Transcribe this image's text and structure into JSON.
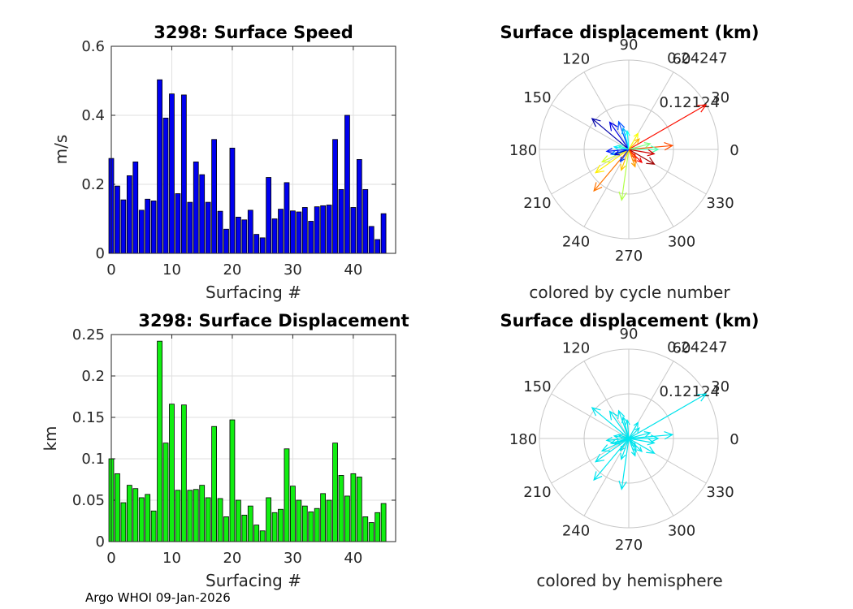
{
  "footer": "Argo WHOI 09-Jan-2026",
  "chart_data": [
    {
      "type": "bar",
      "title": "3298: Surface Speed",
      "xlabel": "Surfacing #",
      "ylabel": "m/s",
      "xlim": [
        0,
        47
      ],
      "ylim": [
        0,
        0.6
      ],
      "xticks": [
        0,
        10,
        20,
        30,
        40
      ],
      "yticks": [
        0,
        0.2,
        0.4,
        0.6
      ],
      "xtick_labels": [
        "0",
        "10",
        "20",
        "30",
        "40"
      ],
      "ytick_labels": [
        "0",
        "0.2",
        "0.4",
        "0.6"
      ],
      "color": "#0000ee",
      "x": [
        0,
        1,
        2,
        3,
        4,
        5,
        6,
        7,
        8,
        9,
        10,
        11,
        12,
        13,
        14,
        15,
        16,
        17,
        18,
        19,
        20,
        21,
        22,
        23,
        24,
        25,
        26,
        27,
        28,
        29,
        30,
        31,
        32,
        33,
        34,
        35,
        36,
        37,
        38,
        39,
        40,
        41,
        42,
        43,
        44,
        45
      ],
      "values": [
        0.275,
        0.195,
        0.155,
        0.225,
        0.265,
        0.125,
        0.157,
        0.152,
        0.503,
        0.392,
        0.462,
        0.173,
        0.459,
        0.148,
        0.265,
        0.228,
        0.148,
        0.33,
        0.122,
        0.07,
        0.305,
        0.105,
        0.097,
        0.125,
        0.055,
        0.045,
        0.22,
        0.1,
        0.128,
        0.205,
        0.123,
        0.12,
        0.133,
        0.093,
        0.135,
        0.138,
        0.14,
        0.33,
        0.185,
        0.4,
        0.133,
        0.272,
        0.185,
        0.078,
        0.04,
        0.115
      ]
    },
    {
      "type": "bar",
      "title": "3298: Surface Displacement",
      "xlabel": "Surfacing #",
      "ylabel": "km",
      "xlim": [
        0,
        47
      ],
      "ylim": [
        0,
        0.25
      ],
      "xticks": [
        0,
        10,
        20,
        30,
        40
      ],
      "yticks": [
        0,
        0.05,
        0.1,
        0.15,
        0.2,
        0.25
      ],
      "xtick_labels": [
        "0",
        "10",
        "20",
        "30",
        "40"
      ],
      "ytick_labels": [
        "0",
        "0.05",
        "0.1",
        "0.15",
        "0.2",
        "0.25"
      ],
      "color": "#11ee11",
      "x": [
        0,
        1,
        2,
        3,
        4,
        5,
        6,
        7,
        8,
        9,
        10,
        11,
        12,
        13,
        14,
        15,
        16,
        17,
        18,
        19,
        20,
        21,
        22,
        23,
        24,
        25,
        26,
        27,
        28,
        29,
        30,
        31,
        32,
        33,
        34,
        35,
        36,
        37,
        38,
        39,
        40,
        41,
        42,
        43,
        44,
        45
      ],
      "values": [
        0.1,
        0.082,
        0.047,
        0.068,
        0.064,
        0.053,
        0.057,
        0.037,
        0.242,
        0.119,
        0.166,
        0.062,
        0.165,
        0.062,
        0.063,
        0.068,
        0.053,
        0.139,
        0.052,
        0.03,
        0.147,
        0.05,
        0.032,
        0.043,
        0.02,
        0.013,
        0.053,
        0.035,
        0.039,
        0.112,
        0.067,
        0.05,
        0.043,
        0.036,
        0.04,
        0.058,
        0.05,
        0.119,
        0.08,
        0.055,
        0.082,
        0.078,
        0.03,
        0.023,
        0.035,
        0.046
      ]
    },
    {
      "type": "polar-quiver",
      "title": "Surface displacement (km)",
      "subtitle": "colored by cycle number",
      "rmax": 0.24247,
      "rtick_labels": [
        "0.12124",
        "0.24247"
      ],
      "angle_labels": [
        "0",
        "30",
        "60",
        "90",
        "120",
        "150",
        "180",
        "210",
        "240",
        "270",
        "300",
        "330"
      ],
      "colormap": "jet",
      "vectors": [
        {
          "angle": 30,
          "r": 0.242,
          "c": 0.86
        },
        {
          "angle": 140,
          "r": 0.13,
          "c": 0.04
        },
        {
          "angle": 125,
          "r": 0.09,
          "c": 0.1
        },
        {
          "angle": 110,
          "r": 0.08,
          "c": 0.2
        },
        {
          "angle": 105,
          "r": 0.06,
          "c": 0.3
        },
        {
          "angle": 95,
          "r": 0.05,
          "c": 0.38
        },
        {
          "angle": 60,
          "r": 0.05,
          "c": 0.62
        },
        {
          "angle": 45,
          "r": 0.04,
          "c": 0.7
        },
        {
          "angle": 5,
          "r": 0.119,
          "c": 0.8
        },
        {
          "angle": 0,
          "r": 0.08,
          "c": 0.45
        },
        {
          "angle": 15,
          "r": 0.06,
          "c": 0.5
        },
        {
          "angle": -10,
          "r": 0.07,
          "c": 0.92
        },
        {
          "angle": -30,
          "r": 0.08,
          "c": 0.97
        },
        {
          "angle": -45,
          "r": 0.05,
          "c": 0.88
        },
        {
          "angle": -60,
          "r": 0.04,
          "c": 0.78
        },
        {
          "angle": 230,
          "r": 0.147,
          "c": 0.76
        },
        {
          "angle": 215,
          "r": 0.11,
          "c": 0.64
        },
        {
          "angle": 205,
          "r": 0.08,
          "c": 0.58
        },
        {
          "angle": 262,
          "r": 0.139,
          "c": 0.55
        },
        {
          "angle": 250,
          "r": 0.06,
          "c": 0.68
        },
        {
          "angle": 195,
          "r": 0.05,
          "c": 0.25
        },
        {
          "angle": 185,
          "r": 0.06,
          "c": 0.15
        },
        {
          "angle": 200,
          "r": 0.04,
          "c": 0.08
        },
        {
          "angle": 170,
          "r": 0.04,
          "c": 0.35
        },
        {
          "angle": 160,
          "r": 0.03,
          "c": 0.42
        },
        {
          "angle": 290,
          "r": 0.05,
          "c": 0.72
        },
        {
          "angle": 310,
          "r": 0.03,
          "c": 0.82
        },
        {
          "angle": 235,
          "r": 0.04,
          "c": 0.18
        }
      ]
    },
    {
      "type": "polar-quiver",
      "title": "Surface displacement (km)",
      "subtitle": "colored by hemisphere",
      "rmax": 0.24247,
      "rtick_labels": [
        "0.12124",
        "0.24247"
      ],
      "angle_labels": [
        "0",
        "30",
        "60",
        "90",
        "120",
        "150",
        "180",
        "210",
        "240",
        "270",
        "300",
        "330"
      ],
      "color": "#00e5ee",
      "vectors": [
        {
          "angle": 30,
          "r": 0.242
        },
        {
          "angle": 140,
          "r": 0.13
        },
        {
          "angle": 125,
          "r": 0.09
        },
        {
          "angle": 110,
          "r": 0.08
        },
        {
          "angle": 105,
          "r": 0.06
        },
        {
          "angle": 95,
          "r": 0.05
        },
        {
          "angle": 60,
          "r": 0.05
        },
        {
          "angle": 45,
          "r": 0.04
        },
        {
          "angle": 5,
          "r": 0.119
        },
        {
          "angle": 0,
          "r": 0.08
        },
        {
          "angle": 15,
          "r": 0.06
        },
        {
          "angle": -10,
          "r": 0.07
        },
        {
          "angle": -30,
          "r": 0.08
        },
        {
          "angle": -45,
          "r": 0.05
        },
        {
          "angle": -60,
          "r": 0.04
        },
        {
          "angle": 230,
          "r": 0.147
        },
        {
          "angle": 215,
          "r": 0.11
        },
        {
          "angle": 205,
          "r": 0.08
        },
        {
          "angle": 262,
          "r": 0.139
        },
        {
          "angle": 250,
          "r": 0.06
        },
        {
          "angle": 195,
          "r": 0.05
        },
        {
          "angle": 185,
          "r": 0.06
        },
        {
          "angle": 200,
          "r": 0.04
        },
        {
          "angle": 170,
          "r": 0.04
        },
        {
          "angle": 160,
          "r": 0.03
        },
        {
          "angle": 290,
          "r": 0.05
        },
        {
          "angle": 310,
          "r": 0.03
        },
        {
          "angle": 235,
          "r": 0.04
        }
      ]
    }
  ]
}
